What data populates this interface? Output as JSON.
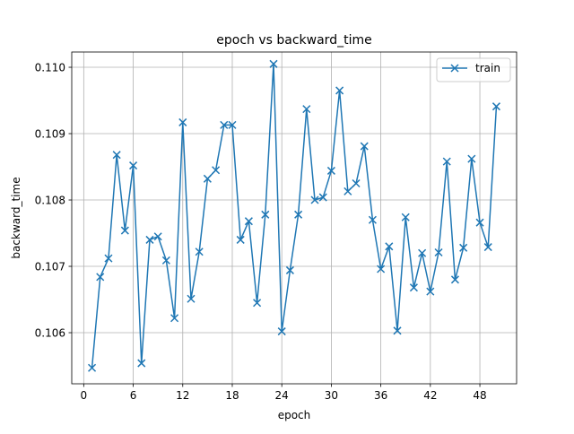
{
  "chart_data": {
    "type": "line",
    "title": "epoch vs backward_time",
    "xlabel": "epoch",
    "ylabel": "backward_time",
    "xlim": [
      -1.45,
      52.45
    ],
    "ylim": [
      0.10523,
      0.11023
    ],
    "xticks": [
      0,
      6,
      12,
      18,
      24,
      30,
      36,
      42,
      48
    ],
    "yticks": [
      0.106,
      0.107,
      0.108,
      0.109,
      0.11
    ],
    "ytick_labels": [
      "0.106",
      "0.107",
      "0.108",
      "0.109",
      "0.110"
    ],
    "grid": true,
    "legend_position": "top-right",
    "series": [
      {
        "name": "train",
        "color": "#1f77b4",
        "marker": "x",
        "x": [
          1,
          2,
          3,
          4,
          5,
          6,
          7,
          8,
          9,
          10,
          11,
          12,
          13,
          14,
          15,
          16,
          17,
          18,
          19,
          20,
          21,
          22,
          23,
          24,
          25,
          26,
          27,
          28,
          29,
          30,
          31,
          32,
          33,
          34,
          35,
          36,
          37,
          38,
          39,
          40,
          41,
          42,
          43,
          44,
          45,
          46,
          47,
          48,
          49,
          50
        ],
        "y": [
          0.10547,
          0.10684,
          0.10712,
          0.10868,
          0.10754,
          0.10852,
          0.10554,
          0.1074,
          0.10745,
          0.10709,
          0.10622,
          0.10917,
          0.10651,
          0.10722,
          0.10832,
          0.10845,
          0.10913,
          0.10913,
          0.1074,
          0.10768,
          0.10645,
          0.10778,
          0.11005,
          0.10602,
          0.10694,
          0.10778,
          0.10937,
          0.108,
          0.10804,
          0.10844,
          0.10965,
          0.10813,
          0.10825,
          0.10881,
          0.1077,
          0.10696,
          0.1073,
          0.10603,
          0.10774,
          0.10668,
          0.1072,
          0.10662,
          0.10721,
          0.10858,
          0.1068,
          0.10728,
          0.10862,
          0.10766,
          0.10729,
          0.10941
        ]
      }
    ]
  }
}
